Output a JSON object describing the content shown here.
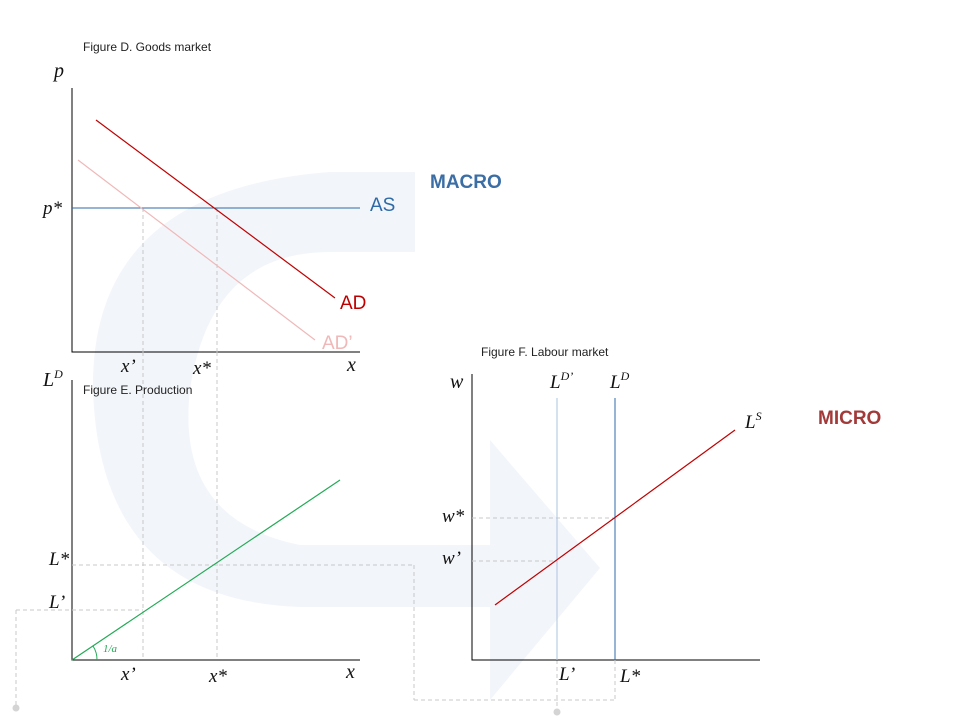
{
  "colors": {
    "macro": "#3a6ea5",
    "micro": "#a33a3a",
    "ad": "#c00000",
    "ad_shift": "#f0b8b8",
    "as": "#2e6aa8",
    "ls": "#c00000",
    "ld": "#2e6aa8",
    "ld_shift": "#a9c4e0",
    "production": "#22aa55",
    "watermark": "#f2f5fa",
    "guide": "#c8c8c8"
  },
  "labels": {
    "macro": "MACRO",
    "micro": "MICRO"
  },
  "figure_d": {
    "title": "Figure D. Goods market",
    "y_axis": "p",
    "x_axis": "x",
    "p_star": "p*",
    "x_prime": "x’",
    "x_star": "x*",
    "as_label": "AS",
    "ad_label": "AD",
    "ad_prime_label": "AD’"
  },
  "figure_e": {
    "title": "Figure E. Production",
    "y_axis": "L",
    "y_axis_sup": "D",
    "x_axis": "x",
    "l_star": "L*",
    "l_prime": "L’",
    "x_prime": "x’",
    "x_star": "x*",
    "slope": "1/a"
  },
  "figure_f": {
    "title": "Figure F. Labour market",
    "y_axis": "w",
    "w_star": "w*",
    "w_prime": "w’",
    "l_prime": "L’",
    "l_star": "L*",
    "ld_label": "L",
    "ld_sup": "D",
    "ld_prime_label": "L",
    "ld_prime_sup": "D’",
    "ls_label": "L",
    "ls_sup": "S"
  }
}
